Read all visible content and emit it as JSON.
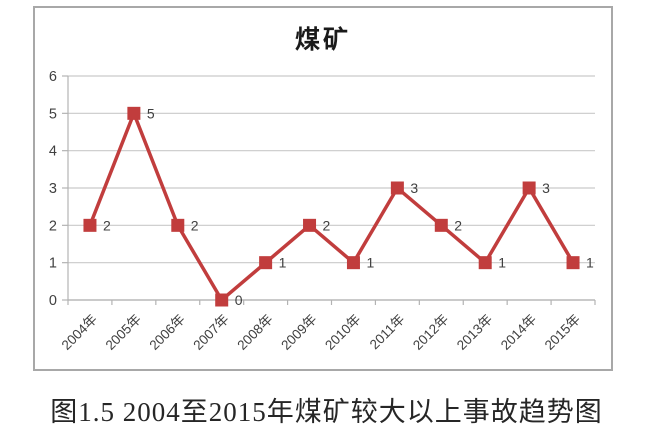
{
  "figure": {
    "caption": "图1.5 2004至2015年煤矿较大以上事故趋势图"
  },
  "chart_data": {
    "type": "line",
    "title": "煤矿",
    "categories": [
      "2004年",
      "2005年",
      "2006年",
      "2007年",
      "2008年",
      "2009年",
      "2010年",
      "2011年",
      "2012年",
      "2013年",
      "2014年",
      "2015年"
    ],
    "series": [
      {
        "name": "煤矿",
        "values": [
          2,
          5,
          2,
          0,
          1,
          2,
          1,
          3,
          2,
          1,
          3,
          1
        ]
      }
    ],
    "data_labels": [
      2,
      5,
      2,
      0,
      1,
      2,
      1,
      3,
      2,
      1,
      3,
      1
    ],
    "xlabel": "",
    "ylabel": "",
    "ylim": [
      0,
      6
    ],
    "yticks": [
      0,
      1,
      2,
      3,
      4,
      5,
      6
    ],
    "grid": true,
    "legend_position": "none",
    "marker": "square",
    "colors": {
      "line": "#c13d3d",
      "marker": "#c13d3d",
      "grid": "#c9c9c9",
      "axis": "#b3b3b3",
      "tick_text": "#404040",
      "title_text": "#1a1a1a",
      "caption_text": "#262626",
      "frame_border": "#a8a8a8"
    }
  }
}
